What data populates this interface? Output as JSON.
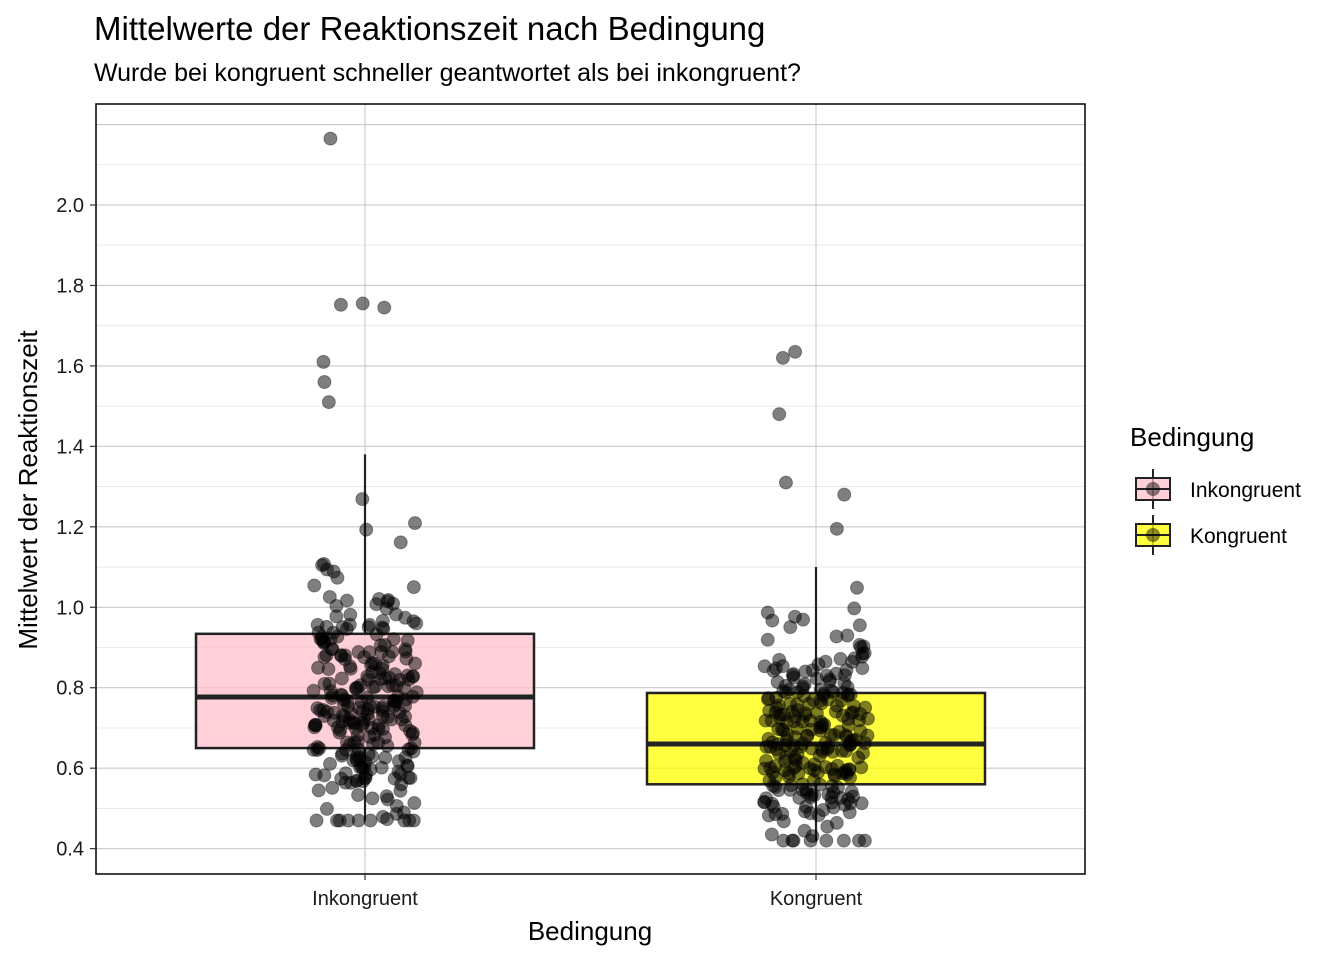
{
  "chart_data": {
    "type": "box",
    "title": "Mittelwerte der Reaktionszeit nach Bedingung",
    "subtitle": "Wurde bei kongruent schneller geantwortet als bei inkongruent?",
    "xlabel": "Bedingung",
    "ylabel": "Mittelwert der Reaktionszeit",
    "categories": [
      "Inkongruent",
      "Kongruent"
    ],
    "ylim": [
      0.337,
      2.251
    ],
    "yticks": [
      "0.4",
      "0.6",
      "0.8",
      "1.0",
      "1.2",
      "1.4",
      "1.6",
      "1.8",
      "2.0"
    ],
    "grid": true,
    "legend": {
      "title": "Bedingung",
      "position": "right",
      "entries": [
        "Inkongruent",
        "Kongruent"
      ]
    },
    "series": [
      {
        "name": "Inkongruent",
        "color": "#FFC0CB",
        "box": {
          "q1": 0.65,
          "median": 0.777,
          "q3": 0.934,
          "whisker_low": 0.47,
          "whisker_high": 1.38
        },
        "outliers": [
          1.755,
          1.752,
          1.745,
          1.61,
          1.56,
          1.51,
          2.165
        ],
        "spread_points": {
          "n": 260,
          "min": 0.47,
          "max": 1.41,
          "center": 0.76,
          "sd": 0.17,
          "jitter": 0.3
        }
      },
      {
        "name": "Kongruent",
        "color": "#FFFF00",
        "box": {
          "q1": 0.56,
          "median": 0.66,
          "q3": 0.787,
          "whisker_low": 0.42,
          "whisker_high": 1.1
        },
        "outliers": [
          1.62,
          1.635,
          1.48,
          1.31,
          1.28,
          1.195
        ],
        "spread_points": {
          "n": 250,
          "min": 0.42,
          "max": 1.16,
          "center": 0.66,
          "sd": 0.14,
          "jitter": 0.3
        }
      }
    ]
  }
}
